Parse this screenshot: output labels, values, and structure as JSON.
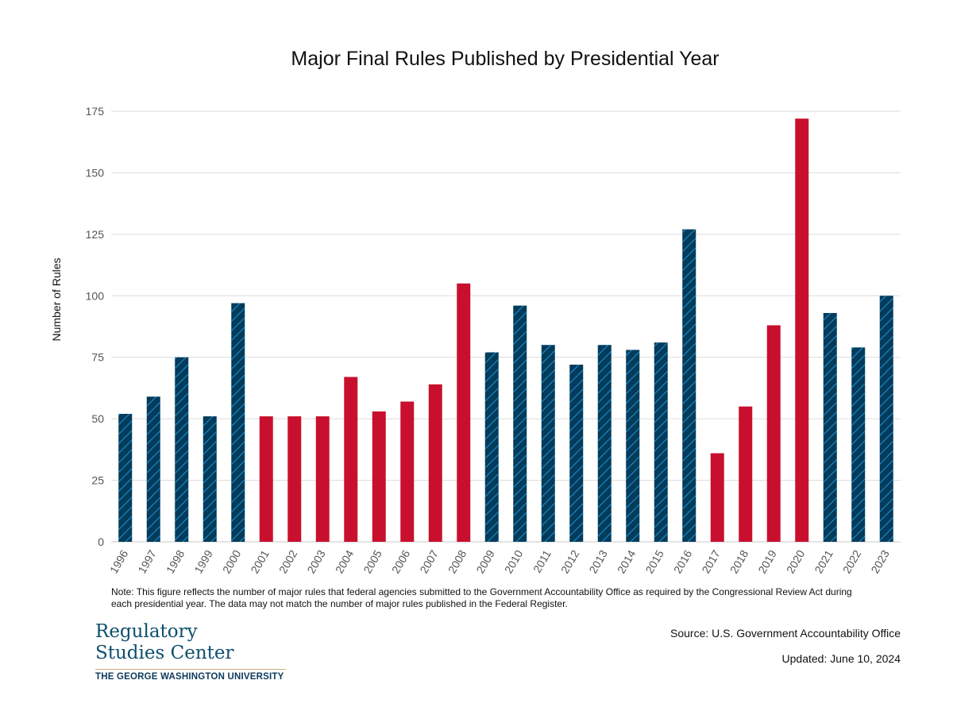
{
  "chart_data": {
    "type": "bar",
    "title": "Major Final Rules Published by Presidential Year",
    "xlabel": "",
    "ylabel": "Number of Rules",
    "ylim": [
      0,
      175
    ],
    "yticks": [
      0,
      25,
      50,
      75,
      100,
      125,
      150,
      175
    ],
    "grid": true,
    "categories": [
      "1996",
      "1997",
      "1998",
      "1999",
      "2000",
      "2001",
      "2002",
      "2003",
      "2004",
      "2005",
      "2006",
      "2007",
      "2008",
      "2009",
      "2010",
      "2011",
      "2012",
      "2013",
      "2014",
      "2015",
      "2016",
      "2017",
      "2018",
      "2019",
      "2020",
      "2021",
      "2022",
      "2023"
    ],
    "values": [
      52,
      59,
      75,
      51,
      97,
      51,
      51,
      51,
      67,
      53,
      57,
      64,
      105,
      77,
      96,
      80,
      72,
      80,
      78,
      81,
      127,
      36,
      55,
      88,
      172,
      93,
      79,
      100
    ],
    "bar_colors_by_party": [
      "D",
      "D",
      "D",
      "D",
      "D",
      "R",
      "R",
      "R",
      "R",
      "R",
      "R",
      "R",
      "R",
      "D",
      "D",
      "D",
      "D",
      "D",
      "D",
      "D",
      "D",
      "R",
      "R",
      "R",
      "R",
      "D",
      "D",
      "D"
    ],
    "colors": {
      "D": "#033c5a",
      "D_hatch": "#1b8fd6",
      "R": "#c8102e",
      "grid": "#dcdcdc",
      "axis_text": "#555555"
    }
  },
  "note": "Note: This figure reflects the number of major rules that federal agencies submitted to the Government Accountability Office as required by the Congressional Review Act during each presidential year. The data may not match the number of major rules published in the Federal Register.",
  "source": "Source: U.S. Government Accountability Office",
  "updated": "Updated: June 10, 2024",
  "logo": {
    "line1": "Regulatory",
    "line2": "Studies Center",
    "university": "THE GEORGE WASHINGTON UNIVERSITY"
  }
}
